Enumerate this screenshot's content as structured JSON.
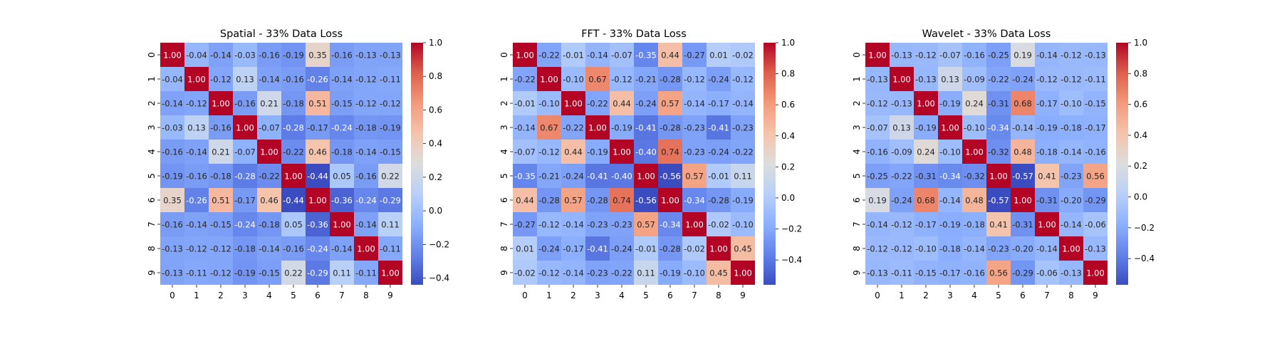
{
  "chart_data": [
    {
      "type": "heatmap",
      "title": "Spatial - 33% Data Loss",
      "xlabel": "",
      "ylabel": "",
      "x": [
        "0",
        "1",
        "2",
        "3",
        "4",
        "5",
        "6",
        "7",
        "8",
        "9"
      ],
      "y": [
        "0",
        "1",
        "2",
        "3",
        "4",
        "5",
        "6",
        "7",
        "8",
        "9"
      ],
      "annot": true,
      "fmt": "2 decimals",
      "colormap": "coolwarm",
      "vmin": -0.44,
      "vmax": 1.0,
      "colorbar_ticks": [
        -0.4,
        -0.2,
        0.0,
        0.2,
        0.4,
        0.6,
        0.8,
        1.0
      ],
      "values": [
        [
          1.0,
          -0.04,
          -0.14,
          -0.03,
          -0.16,
          -0.19,
          0.35,
          -0.16,
          -0.13,
          -0.13
        ],
        [
          -0.04,
          1.0,
          -0.12,
          0.13,
          -0.14,
          -0.16,
          -0.26,
          -0.14,
          -0.12,
          -0.11
        ],
        [
          -0.14,
          -0.12,
          1.0,
          -0.16,
          0.21,
          -0.18,
          0.51,
          -0.15,
          -0.12,
          -0.12
        ],
        [
          -0.03,
          0.13,
          -0.16,
          1.0,
          -0.07,
          -0.28,
          -0.17,
          -0.24,
          -0.18,
          -0.19
        ],
        [
          -0.16,
          -0.14,
          0.21,
          -0.07,
          1.0,
          -0.22,
          0.46,
          -0.18,
          -0.14,
          -0.15
        ],
        [
          -0.19,
          -0.16,
          -0.18,
          -0.28,
          -0.22,
          1.0,
          -0.44,
          0.05,
          -0.16,
          0.22
        ],
        [
          0.35,
          -0.26,
          0.51,
          -0.17,
          0.46,
          -0.44,
          1.0,
          -0.36,
          -0.24,
          -0.29
        ],
        [
          -0.16,
          -0.14,
          -0.15,
          -0.24,
          -0.18,
          0.05,
          -0.36,
          1.0,
          -0.14,
          0.11
        ],
        [
          -0.13,
          -0.12,
          -0.12,
          -0.18,
          -0.14,
          -0.16,
          -0.24,
          -0.14,
          1.0,
          -0.11
        ],
        [
          -0.13,
          -0.11,
          -0.12,
          -0.19,
          -0.15,
          0.22,
          -0.29,
          0.11,
          -0.11,
          1.0
        ]
      ]
    },
    {
      "type": "heatmap",
      "title": "FFT - 33% Data Loss",
      "xlabel": "",
      "ylabel": "",
      "x": [
        "0",
        "1",
        "2",
        "3",
        "4",
        "5",
        "6",
        "7",
        "8",
        "9"
      ],
      "y": [
        "0",
        "1",
        "2",
        "3",
        "4",
        "5",
        "6",
        "7",
        "8",
        "9"
      ],
      "annot": true,
      "fmt": "2 decimals",
      "colormap": "coolwarm",
      "vmin": -0.56,
      "vmax": 1.0,
      "colorbar_ticks": [
        -0.4,
        -0.2,
        0.0,
        0.2,
        0.4,
        0.6,
        0.8,
        1.0
      ],
      "values": [
        [
          1.0,
          -0.22,
          -0.01,
          -0.14,
          -0.07,
          -0.35,
          0.44,
          -0.27,
          0.01,
          -0.02
        ],
        [
          -0.22,
          1.0,
          -0.1,
          0.67,
          -0.12,
          -0.21,
          -0.28,
          -0.12,
          -0.24,
          -0.12
        ],
        [
          -0.01,
          -0.1,
          1.0,
          -0.22,
          0.44,
          -0.24,
          0.57,
          -0.14,
          -0.17,
          -0.14
        ],
        [
          -0.14,
          0.67,
          -0.22,
          1.0,
          -0.19,
          -0.41,
          -0.28,
          -0.23,
          -0.41,
          -0.23
        ],
        [
          -0.07,
          -0.12,
          0.44,
          -0.19,
          1.0,
          -0.4,
          0.74,
          -0.23,
          -0.24,
          -0.22
        ],
        [
          -0.35,
          -0.21,
          -0.24,
          -0.41,
          -0.4,
          1.0,
          -0.56,
          0.57,
          -0.01,
          0.11
        ],
        [
          0.44,
          -0.28,
          0.57,
          -0.28,
          0.74,
          -0.56,
          1.0,
          -0.34,
          -0.28,
          -0.19
        ],
        [
          -0.27,
          -0.12,
          -0.14,
          -0.23,
          -0.23,
          0.57,
          -0.34,
          1.0,
          -0.02,
          -0.1
        ],
        [
          0.01,
          -0.24,
          -0.17,
          -0.41,
          -0.24,
          -0.01,
          -0.28,
          -0.02,
          1.0,
          0.45
        ],
        [
          -0.02,
          -0.12,
          -0.14,
          -0.23,
          -0.22,
          0.11,
          -0.19,
          -0.1,
          0.45,
          1.0
        ]
      ]
    },
    {
      "type": "heatmap",
      "title": "Wavelet - 33% Data Loss",
      "xlabel": "",
      "ylabel": "",
      "x": [
        "0",
        "1",
        "2",
        "3",
        "4",
        "5",
        "6",
        "7",
        "8",
        "9"
      ],
      "y": [
        "0",
        "1",
        "2",
        "3",
        "4",
        "5",
        "6",
        "7",
        "8",
        "9"
      ],
      "annot": true,
      "fmt": "2 decimals",
      "colormap": "coolwarm",
      "vmin": -0.57,
      "vmax": 1.0,
      "colorbar_ticks": [
        -0.4,
        -0.2,
        0.0,
        0.2,
        0.4,
        0.6,
        0.8,
        1.0
      ],
      "values": [
        [
          1.0,
          -0.13,
          -0.12,
          -0.07,
          -0.16,
          -0.25,
          0.19,
          -0.14,
          -0.12,
          -0.13
        ],
        [
          -0.13,
          1.0,
          -0.13,
          0.13,
          -0.09,
          -0.22,
          -0.24,
          -0.12,
          -0.12,
          -0.11
        ],
        [
          -0.12,
          -0.13,
          1.0,
          -0.19,
          0.24,
          -0.31,
          0.68,
          -0.17,
          -0.1,
          -0.15
        ],
        [
          -0.07,
          0.13,
          -0.19,
          1.0,
          -0.1,
          -0.34,
          -0.14,
          -0.19,
          -0.18,
          -0.17
        ],
        [
          -0.16,
          -0.09,
          0.24,
          -0.1,
          1.0,
          -0.32,
          0.48,
          -0.18,
          -0.14,
          -0.16
        ],
        [
          -0.25,
          -0.22,
          -0.31,
          -0.34,
          -0.32,
          1.0,
          -0.57,
          0.41,
          -0.23,
          0.56
        ],
        [
          0.19,
          -0.24,
          0.68,
          -0.14,
          0.48,
          -0.57,
          1.0,
          -0.31,
          -0.2,
          -0.29
        ],
        [
          -0.14,
          -0.12,
          -0.17,
          -0.19,
          -0.18,
          0.41,
          -0.31,
          1.0,
          -0.14,
          -0.06
        ],
        [
          -0.12,
          -0.12,
          -0.1,
          -0.18,
          -0.14,
          -0.23,
          -0.2,
          -0.14,
          1.0,
          -0.13
        ],
        [
          -0.13,
          -0.11,
          -0.15,
          -0.17,
          -0.16,
          0.56,
          -0.29,
          -0.06,
          -0.13,
          1.0
        ]
      ]
    }
  ]
}
